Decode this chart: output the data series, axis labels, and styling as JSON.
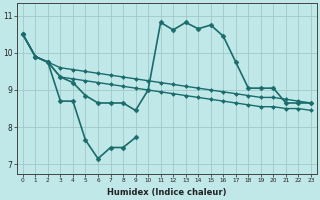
{
  "xlabel": "Humidex (Indice chaleur)",
  "background_color": "#c0e8e8",
  "grid_color": "#a0c8c8",
  "line_color": "#1a6b6b",
  "xlim": [
    -0.5,
    23.5
  ],
  "ylim": [
    6.75,
    11.35
  ],
  "yticks": [
    7,
    8,
    9,
    10,
    11
  ],
  "xticks": [
    0,
    1,
    2,
    3,
    4,
    5,
    6,
    7,
    8,
    9,
    10,
    11,
    12,
    13,
    14,
    15,
    16,
    17,
    18,
    19,
    20,
    21,
    22,
    23
  ],
  "lines": [
    {
      "x": [
        0,
        1,
        2,
        3,
        4,
        5,
        6,
        7,
        8,
        9
      ],
      "y": [
        10.5,
        9.9,
        9.75,
        8.7,
        8.7,
        7.65,
        7.15,
        7.45,
        7.45,
        7.72
      ],
      "marker": "D",
      "markersize": 2.5,
      "linewidth": 1.2
    },
    {
      "x": [
        0,
        1,
        2,
        3,
        4,
        5,
        6,
        7,
        8,
        9,
        10,
        11,
        12,
        13,
        14,
        15,
        16,
        17,
        18,
        19,
        20,
        21,
        22,
        23
      ],
      "y": [
        10.5,
        9.9,
        9.75,
        9.35,
        9.2,
        8.85,
        8.65,
        8.65,
        8.65,
        8.45,
        9.0,
        10.82,
        10.62,
        10.82,
        10.65,
        10.75,
        10.45,
        9.75,
        9.05,
        9.05,
        9.05,
        8.65,
        8.65,
        8.65
      ],
      "marker": "D",
      "markersize": 2.5,
      "linewidth": 1.2
    },
    {
      "x": [
        0,
        1,
        2,
        3,
        4,
        5,
        6,
        7,
        8,
        9,
        10,
        11,
        12,
        13,
        14,
        15,
        16,
        17,
        18,
        19,
        20,
        21,
        22,
        23
      ],
      "y": [
        10.5,
        9.9,
        9.75,
        9.6,
        9.55,
        9.5,
        9.45,
        9.4,
        9.35,
        9.3,
        9.25,
        9.2,
        9.15,
        9.1,
        9.05,
        9.0,
        8.95,
        8.9,
        8.85,
        8.8,
        8.8,
        8.75,
        8.7,
        8.65
      ],
      "marker": "D",
      "markersize": 2.0,
      "linewidth": 1.0
    },
    {
      "x": [
        0,
        1,
        2,
        3,
        4,
        5,
        6,
        7,
        8,
        9,
        10,
        11,
        12,
        13,
        14,
        15,
        16,
        17,
        18,
        19,
        20,
        21,
        22,
        23
      ],
      "y": [
        10.5,
        9.9,
        9.75,
        9.35,
        9.3,
        9.25,
        9.2,
        9.15,
        9.1,
        9.05,
        9.0,
        8.95,
        8.9,
        8.85,
        8.8,
        8.75,
        8.7,
        8.65,
        8.6,
        8.55,
        8.55,
        8.5,
        8.5,
        8.45
      ],
      "marker": "D",
      "markersize": 2.0,
      "linewidth": 1.0
    }
  ]
}
